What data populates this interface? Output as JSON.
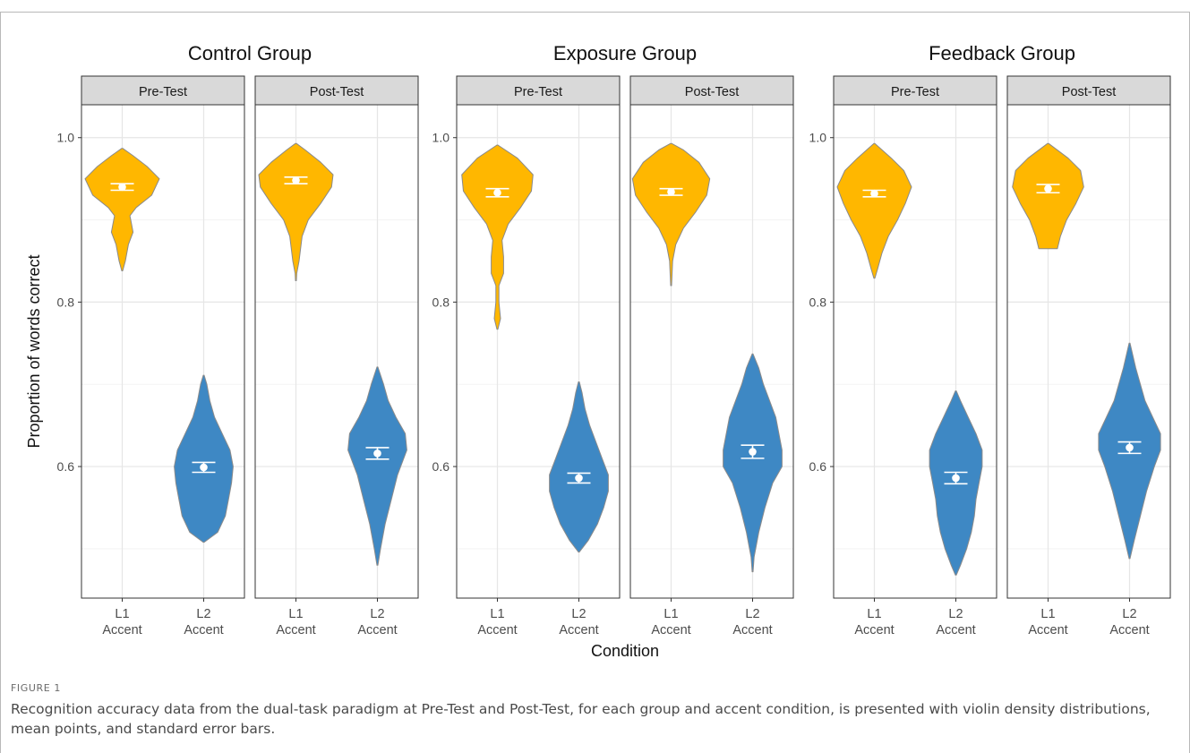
{
  "figure": {
    "label": "FIGURE 1",
    "caption": "Recognition accuracy data from the dual-task paradigm at Pre-Test and Post-Test, for each group and accent condition, is presented with violin density distributions, mean points, and standard error bars."
  },
  "colors": {
    "l1": "#FFB700",
    "l2": "#3E88C4",
    "panel_strip": "#D9D9D9",
    "grid_major": "#E6E6E6",
    "grid_minor": "#F3F3F3"
  },
  "chart_data": {
    "type": "violin",
    "ylabel": "Proportion of words correct",
    "xlabel": "Condition",
    "ylim": [
      0.44,
      1.04
    ],
    "yticks": [
      0.6,
      0.8,
      1.0
    ],
    "ytick_labels": [
      "0.6",
      "0.8",
      "1.0"
    ],
    "grid": true,
    "categories": [
      "L1 Accent",
      "L2 Accent"
    ],
    "category_lines": [
      [
        "L1",
        "Accent"
      ],
      [
        "L2",
        "Accent"
      ]
    ],
    "groups": [
      {
        "name": "Control Group",
        "panels": [
          {
            "name": "Pre-Test",
            "violins": [
              {
                "accent": "L1",
                "mean": 0.94,
                "se_low": 0.936,
                "se_high": 0.944,
                "profile": [
                  [
                    0.838,
                    0.003
                  ],
                  [
                    0.85,
                    0.02
                  ],
                  [
                    0.87,
                    0.04
                  ],
                  [
                    0.885,
                    0.07
                  ],
                  [
                    0.895,
                    0.06
                  ],
                  [
                    0.905,
                    0.05
                  ],
                  [
                    0.915,
                    0.09
                  ],
                  [
                    0.93,
                    0.19
                  ],
                  [
                    0.95,
                    0.24
                  ],
                  [
                    0.965,
                    0.16
                  ],
                  [
                    0.978,
                    0.07
                  ],
                  [
                    0.987,
                    0.003
                  ]
                ]
              },
              {
                "accent": "L2",
                "mean": 0.599,
                "se_low": 0.593,
                "se_high": 0.605,
                "profile": [
                  [
                    0.508,
                    0.003
                  ],
                  [
                    0.52,
                    0.09
                  ],
                  [
                    0.54,
                    0.14
                  ],
                  [
                    0.56,
                    0.16
                  ],
                  [
                    0.58,
                    0.18
                  ],
                  [
                    0.6,
                    0.19
                  ],
                  [
                    0.62,
                    0.17
                  ],
                  [
                    0.64,
                    0.12
                  ],
                  [
                    0.66,
                    0.07
                  ],
                  [
                    0.68,
                    0.04
                  ],
                  [
                    0.7,
                    0.02
                  ],
                  [
                    0.711,
                    0.003
                  ]
                ]
              }
            ]
          },
          {
            "name": "Post-Test",
            "violins": [
              {
                "accent": "L1",
                "mean": 0.948,
                "se_low": 0.944,
                "se_high": 0.952,
                "profile": [
                  [
                    0.826,
                    0.003
                  ],
                  [
                    0.835,
                    0.005
                  ],
                  [
                    0.85,
                    0.02
                  ],
                  [
                    0.88,
                    0.04
                  ],
                  [
                    0.9,
                    0.08
                  ],
                  [
                    0.92,
                    0.16
                  ],
                  [
                    0.94,
                    0.23
                  ],
                  [
                    0.955,
                    0.24
                  ],
                  [
                    0.97,
                    0.16
                  ],
                  [
                    0.985,
                    0.06
                  ],
                  [
                    0.993,
                    0.003
                  ]
                ]
              },
              {
                "accent": "L2",
                "mean": 0.616,
                "se_low": 0.609,
                "se_high": 0.623,
                "profile": [
                  [
                    0.48,
                    0.003
                  ],
                  [
                    0.5,
                    0.02
                  ],
                  [
                    0.53,
                    0.05
                  ],
                  [
                    0.56,
                    0.09
                  ],
                  [
                    0.59,
                    0.13
                  ],
                  [
                    0.62,
                    0.19
                  ],
                  [
                    0.64,
                    0.18
                  ],
                  [
                    0.66,
                    0.12
                  ],
                  [
                    0.68,
                    0.07
                  ],
                  [
                    0.7,
                    0.04
                  ],
                  [
                    0.721,
                    0.003
                  ]
                ]
              }
            ]
          }
        ]
      },
      {
        "name": "Exposure Group",
        "panels": [
          {
            "name": "Pre-Test",
            "violins": [
              {
                "accent": "L1",
                "mean": 0.933,
                "se_low": 0.928,
                "se_high": 0.938,
                "profile": [
                  [
                    0.767,
                    0.003
                  ],
                  [
                    0.78,
                    0.02
                  ],
                  [
                    0.8,
                    0.01
                  ],
                  [
                    0.82,
                    0.01
                  ],
                  [
                    0.835,
                    0.04
                  ],
                  [
                    0.855,
                    0.04
                  ],
                  [
                    0.875,
                    0.03
                  ],
                  [
                    0.895,
                    0.07
                  ],
                  [
                    0.915,
                    0.15
                  ],
                  [
                    0.935,
                    0.22
                  ],
                  [
                    0.955,
                    0.23
                  ],
                  [
                    0.975,
                    0.13
                  ],
                  [
                    0.991,
                    0.003
                  ]
                ]
              },
              {
                "accent": "L2",
                "mean": 0.586,
                "se_low": 0.58,
                "se_high": 0.592,
                "profile": [
                  [
                    0.496,
                    0.003
                  ],
                  [
                    0.51,
                    0.06
                  ],
                  [
                    0.53,
                    0.12
                  ],
                  [
                    0.55,
                    0.16
                  ],
                  [
                    0.57,
                    0.19
                  ],
                  [
                    0.59,
                    0.19
                  ],
                  [
                    0.61,
                    0.15
                  ],
                  [
                    0.63,
                    0.11
                  ],
                  [
                    0.65,
                    0.07
                  ],
                  [
                    0.67,
                    0.04
                  ],
                  [
                    0.69,
                    0.02
                  ],
                  [
                    0.703,
                    0.003
                  ]
                ]
              }
            ]
          },
          {
            "name": "Post-Test",
            "violins": [
              {
                "accent": "L1",
                "mean": 0.934,
                "se_low": 0.93,
                "se_high": 0.938,
                "profile": [
                  [
                    0.82,
                    0.003
                  ],
                  [
                    0.83,
                    0.005
                  ],
                  [
                    0.85,
                    0.01
                  ],
                  [
                    0.87,
                    0.03
                  ],
                  [
                    0.89,
                    0.08
                  ],
                  [
                    0.91,
                    0.16
                  ],
                  [
                    0.93,
                    0.23
                  ],
                  [
                    0.95,
                    0.25
                  ],
                  [
                    0.97,
                    0.18
                  ],
                  [
                    0.985,
                    0.08
                  ],
                  [
                    0.993,
                    0.003
                  ]
                ]
              },
              {
                "accent": "L2",
                "mean": 0.618,
                "se_low": 0.61,
                "se_high": 0.626,
                "profile": [
                  [
                    0.472,
                    0.003
                  ],
                  [
                    0.49,
                    0.01
                  ],
                  [
                    0.52,
                    0.04
                  ],
                  [
                    0.55,
                    0.08
                  ],
                  [
                    0.58,
                    0.13
                  ],
                  [
                    0.6,
                    0.19
                  ],
                  [
                    0.62,
                    0.19
                  ],
                  [
                    0.64,
                    0.17
                  ],
                  [
                    0.66,
                    0.15
                  ],
                  [
                    0.68,
                    0.11
                  ],
                  [
                    0.7,
                    0.07
                  ],
                  [
                    0.72,
                    0.04
                  ],
                  [
                    0.737,
                    0.003
                  ]
                ]
              }
            ]
          }
        ]
      },
      {
        "name": "Feedback Group",
        "panels": [
          {
            "name": "Pre-Test",
            "violins": [
              {
                "accent": "L1",
                "mean": 0.932,
                "se_low": 0.928,
                "se_high": 0.936,
                "profile": [
                  [
                    0.829,
                    0.003
                  ],
                  [
                    0.84,
                    0.02
                  ],
                  [
                    0.86,
                    0.05
                  ],
                  [
                    0.88,
                    0.09
                  ],
                  [
                    0.9,
                    0.15
                  ],
                  [
                    0.92,
                    0.2
                  ],
                  [
                    0.94,
                    0.24
                  ],
                  [
                    0.96,
                    0.19
                  ],
                  [
                    0.975,
                    0.11
                  ],
                  [
                    0.993,
                    0.003
                  ]
                ]
              },
              {
                "accent": "L2",
                "mean": 0.586,
                "se_low": 0.579,
                "se_high": 0.593,
                "profile": [
                  [
                    0.468,
                    0.003
                  ],
                  [
                    0.48,
                    0.03
                  ],
                  [
                    0.5,
                    0.07
                  ],
                  [
                    0.52,
                    0.1
                  ],
                  [
                    0.54,
                    0.12
                  ],
                  [
                    0.56,
                    0.13
                  ],
                  [
                    0.58,
                    0.15
                  ],
                  [
                    0.6,
                    0.17
                  ],
                  [
                    0.62,
                    0.17
                  ],
                  [
                    0.64,
                    0.13
                  ],
                  [
                    0.66,
                    0.08
                  ],
                  [
                    0.68,
                    0.03
                  ],
                  [
                    0.692,
                    0.003
                  ]
                ]
              }
            ]
          },
          {
            "name": "Post-Test",
            "violins": [
              {
                "accent": "L1",
                "mean": 0.938,
                "se_low": 0.933,
                "se_high": 0.943,
                "profile": [
                  [
                    0.865,
                    0.06
                  ],
                  [
                    0.88,
                    0.08
                  ],
                  [
                    0.9,
                    0.12
                  ],
                  [
                    0.92,
                    0.18
                  ],
                  [
                    0.94,
                    0.23
                  ],
                  [
                    0.96,
                    0.21
                  ],
                  [
                    0.975,
                    0.13
                  ],
                  [
                    0.993,
                    0.003
                  ]
                ]
              },
              {
                "accent": "L2",
                "mean": 0.623,
                "se_low": 0.616,
                "se_high": 0.63,
                "profile": [
                  [
                    0.488,
                    0.003
                  ],
                  [
                    0.51,
                    0.03
                  ],
                  [
                    0.54,
                    0.07
                  ],
                  [
                    0.57,
                    0.11
                  ],
                  [
                    0.6,
                    0.16
                  ],
                  [
                    0.62,
                    0.2
                  ],
                  [
                    0.64,
                    0.2
                  ],
                  [
                    0.66,
                    0.15
                  ],
                  [
                    0.68,
                    0.1
                  ],
                  [
                    0.7,
                    0.07
                  ],
                  [
                    0.72,
                    0.04
                  ],
                  [
                    0.75,
                    0.003
                  ]
                ]
              }
            ]
          }
        ]
      }
    ]
  }
}
